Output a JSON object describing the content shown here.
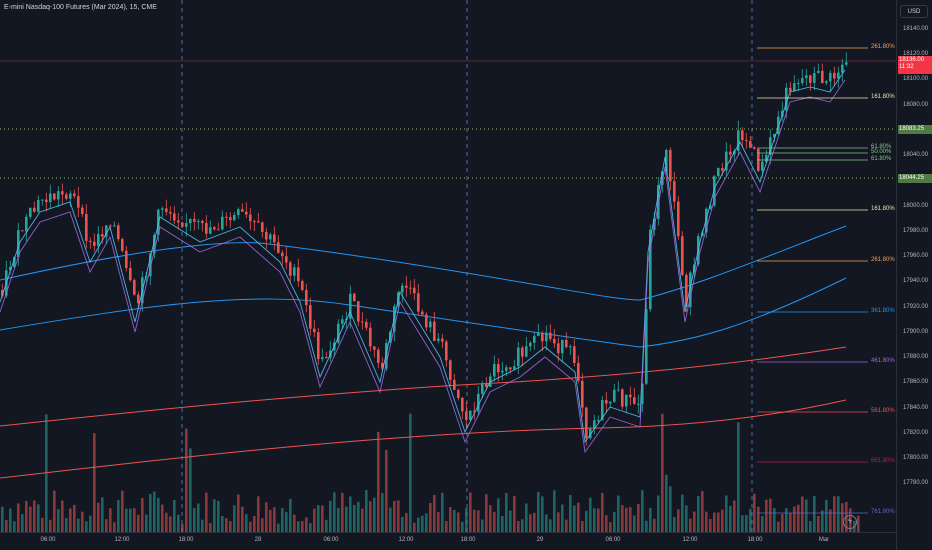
{
  "header": {
    "title": "E-mini Nasdaq-100 Futures (Mar 2024), 15, CME"
  },
  "currency": "USD",
  "price_ticks": [
    "18140.00",
    "18120.00",
    "18100.00",
    "18080.00",
    "18060.00",
    "18040.00",
    "18020.00",
    "18000.00",
    "17980.00",
    "17960.00",
    "17940.00",
    "17920.00",
    "17900.00",
    "17880.00",
    "17860.00",
    "17840.00",
    "17820.00",
    "17800.00",
    "17780.00"
  ],
  "time_ticks": [
    "06:00",
    "12:00",
    "18:00",
    "28",
    "06:00",
    "12:00",
    "18:00",
    "29",
    "06:00",
    "12:00",
    "18:00",
    "Mar"
  ],
  "price_labels": {
    "current_price": "18136.00",
    "countdown": "11:32",
    "level_upper": "18083.25",
    "level_lower": "18044.25"
  },
  "fib_labels": [
    {
      "text": "261.80%",
      "color": "#f0a35a"
    },
    {
      "text": "161.80%",
      "color": "#f5e5a8"
    },
    {
      "text": "61.80%",
      "color": "#81c784"
    },
    {
      "text": "50.00%",
      "color": "#81c784"
    },
    {
      "text": "61.80%",
      "color": "#81c784"
    },
    {
      "text": "161.80%",
      "color": "#f5e5a8"
    },
    {
      "text": "261.80%",
      "color": "#f0a35a"
    },
    {
      "text": "361.80%",
      "color": "#2196f3"
    },
    {
      "text": "461.80%",
      "color": "#9c6ade"
    },
    {
      "text": "561.80%",
      "color": "#ef5350"
    },
    {
      "text": "661.80%",
      "color": "#c2185b"
    },
    {
      "text": "761.80%",
      "color": "#5c6bc0"
    }
  ],
  "colors": {
    "up": "#26a69a",
    "down": "#ef5350",
    "background": "#131722"
  },
  "icons": {
    "lightning": "lightning-icon"
  }
}
